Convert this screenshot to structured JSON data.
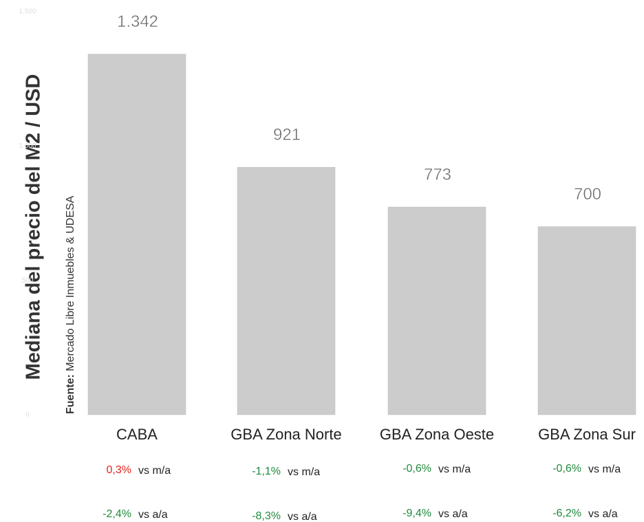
{
  "chart_data": {
    "type": "bar",
    "y_axis_label": "Mediana del precio del M2 / USD",
    "source_label": "Fuente:",
    "source": "Mercado Libre Inmuebles & UDESA",
    "categories": [
      "CABA",
      "GBA Zona Norte",
      "GBA Zona Oeste",
      "GBA Zona Sur"
    ],
    "values": [
      1342,
      921,
      773,
      700
    ],
    "value_labels": [
      "1.342",
      "921",
      "773",
      "700"
    ],
    "color": "#cccccc",
    "ylim": [
      0,
      1500
    ],
    "yticks": [
      0,
      500,
      {
        "value": 1000,
        "label": "1.000"
      },
      {
        "value": 1500,
        "label": "1.500"
      }
    ],
    "monthly_change": {
      "label": "vs m/a",
      "values": [
        0.3,
        -1.1,
        -0.6,
        -0.6
      ],
      "value_labels": [
        "0,3%",
        "-1,1%",
        "-0,6%",
        "-0,6%"
      ]
    },
    "yearly_change": {
      "label": "vs a/a",
      "values": [
        -2.4,
        -8.3,
        -9.4,
        -6.2
      ],
      "value_labels": [
        "-2,4%",
        "-8,3%",
        "-9,4%",
        "-6,2%"
      ]
    },
    "positive_color": "#e8211b",
    "negative_color": "#1f8a3c"
  }
}
